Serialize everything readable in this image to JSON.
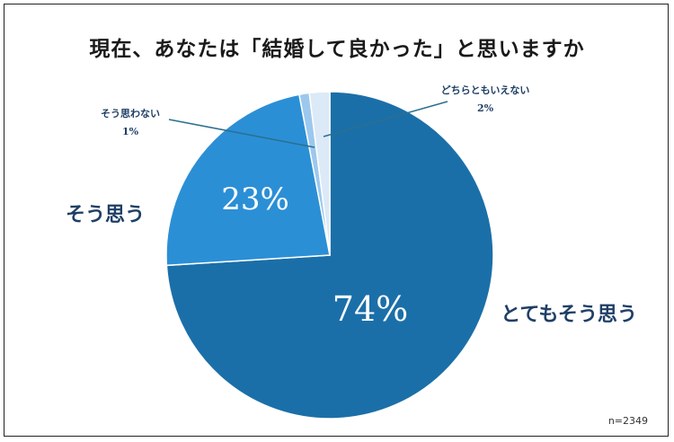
{
  "chart_data": {
    "type": "pie",
    "title": "現在、あなたは「結婚して良かった」と思いますか",
    "categories": [
      "とてもそう思う",
      "そう思う",
      "そう思わない",
      "どちらともいえない"
    ],
    "values": [
      74,
      23,
      1,
      2
    ],
    "value_labels": [
      "74%",
      "23%",
      "1%",
      "2%"
    ],
    "colors": [
      "#1b6fa8",
      "#2b8fd6",
      "#9cc8ee",
      "#dce9f7"
    ],
    "start": "12 o'clock",
    "direction": "clockwise",
    "sample_size": "n=2349"
  }
}
